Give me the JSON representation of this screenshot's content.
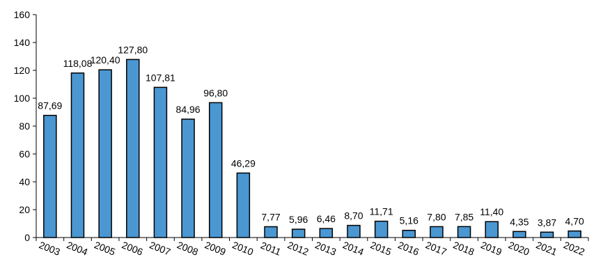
{
  "chart_data": {
    "type": "bar",
    "categories": [
      "2003",
      "2004",
      "2005",
      "2006",
      "2007",
      "2008",
      "2009",
      "2010",
      "2011",
      "2012",
      "2013",
      "2014",
      "2015",
      "2016",
      "2017",
      "2018",
      "2019",
      "2020",
      "2021",
      "2022"
    ],
    "values": [
      87.69,
      118.08,
      120.4,
      127.8,
      107.81,
      84.96,
      96.8,
      46.29,
      7.77,
      5.96,
      6.46,
      8.7,
      11.71,
      5.16,
      7.8,
      7.85,
      11.4,
      4.35,
      3.87,
      4.7
    ],
    "value_labels": [
      "87,69",
      "118,08",
      "120,40",
      "127,80",
      "107,81",
      "84,96",
      "96,80",
      "46,29",
      "7,77",
      "5,96",
      "6,46",
      "8,70",
      "11,71",
      "5,16",
      "7,80",
      "7,85",
      "11,40",
      "4,35",
      "3,87",
      "4,70"
    ],
    "ylim": [
      0,
      160
    ],
    "yticks": [
      "0",
      "20",
      "40",
      "60",
      "80",
      "100",
      "120",
      "140",
      "160"
    ],
    "title": "",
    "xlabel": "",
    "ylabel": "",
    "grid": false,
    "bar_color": "#4a97d2",
    "bar_edge_color": "#000000"
  }
}
